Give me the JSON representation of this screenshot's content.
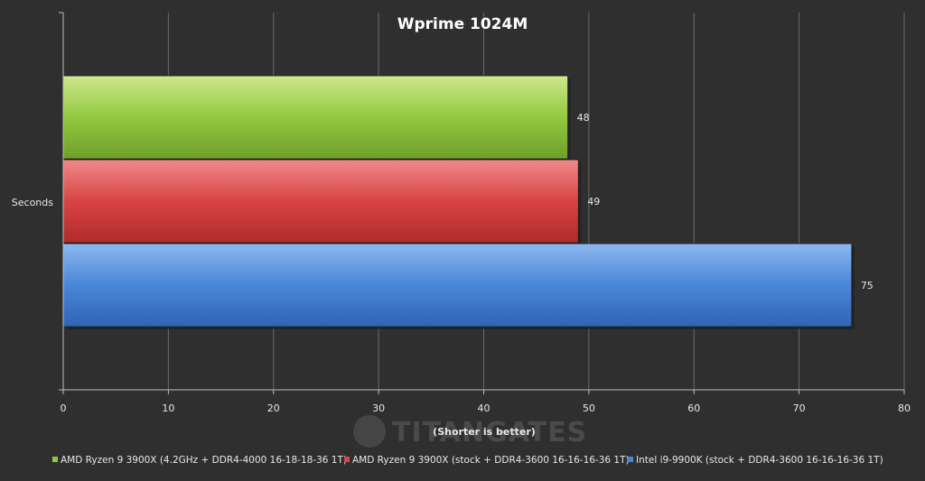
{
  "chart_data": {
    "type": "bar",
    "orientation": "horizontal",
    "title": "Wprime 1024M",
    "xlabel": "(Shorter is better)",
    "ylabel": "",
    "categories": [
      "Seconds"
    ],
    "series": [
      {
        "name": "AMD Ryzen  9 3900X (4.2GHz + DDR4-4000 16-18-18-36 1T)",
        "values": [
          48
        ],
        "color": "#8fc73e"
      },
      {
        "name": "AMD Ryzen  9 3900X (stock + DDR4-3600 16-16-16-36 1T)",
        "values": [
          49
        ],
        "color": "#d94545"
      },
      {
        "name": "Intel i9-9900K (stock + DDR4-3600 16-16-16-36 1T)",
        "values": [
          75
        ],
        "color": "#4a86d8"
      }
    ],
    "xlim": [
      0,
      80
    ],
    "xticks": [
      0,
      10,
      20,
      30,
      40,
      50,
      60,
      70,
      80
    ],
    "grid": true,
    "legend": "bottom",
    "watermark": "TITANGATES"
  }
}
